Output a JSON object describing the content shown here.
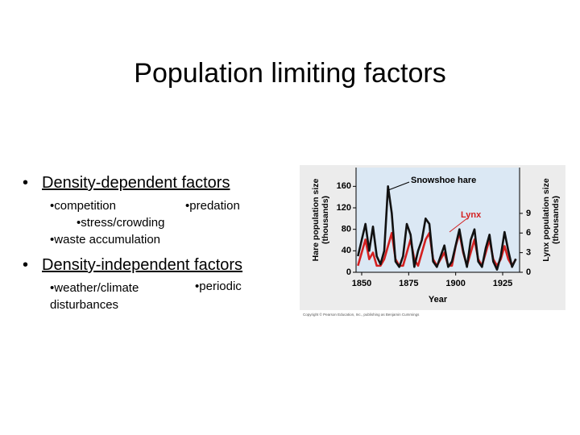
{
  "title": "Population limiting factors",
  "bullets": [
    {
      "heading": "Density-dependent factors",
      "items": [
        "competition",
        "predation",
        "stress/crowding",
        "waste accumulation"
      ]
    },
    {
      "heading": "Density-independent factors",
      "items": [
        "weather/climate disturbances",
        "periodic"
      ]
    }
  ],
  "chart_data": {
    "type": "line",
    "xlabel": "Year",
    "ylabel": [
      "Hare population size",
      "(thousands)"
    ],
    "y2label": [
      "Lynx population size",
      "(thousands)"
    ],
    "annotations": [
      "Snowshoe hare",
      "Lynx"
    ],
    "credit": "Copyright © Pearson Education, Inc., publishing as Benjamin Cummings",
    "x": [
      1848,
      1850,
      1852,
      1854,
      1856,
      1858,
      1860,
      1862,
      1864,
      1866,
      1868,
      1870,
      1872,
      1874,
      1876,
      1878,
      1880,
      1882,
      1884,
      1886,
      1888,
      1890,
      1892,
      1894,
      1896,
      1898,
      1900,
      1902,
      1904,
      1906,
      1908,
      1910,
      1912,
      1914,
      1916,
      1918,
      1920,
      1922,
      1924,
      1926,
      1928,
      1930,
      1932
    ],
    "series": [
      {
        "name": "Snowshoe hare",
        "color": "#111111",
        "values": [
          30,
          60,
          90,
          40,
          85,
          30,
          15,
          40,
          160,
          110,
          20,
          10,
          30,
          90,
          70,
          10,
          40,
          60,
          100,
          90,
          20,
          10,
          30,
          50,
          10,
          20,
          50,
          80,
          40,
          10,
          60,
          80,
          20,
          10,
          45,
          70,
          20,
          5,
          30,
          75,
          40,
          10,
          25
        ]
      },
      {
        "name": "Lynx",
        "color": "#d42020",
        "axis": "y2",
        "values": [
          1,
          3,
          5,
          2,
          3,
          1,
          1,
          2,
          4,
          6,
          2,
          1,
          1,
          3,
          5,
          2,
          1,
          3,
          5,
          6,
          2,
          1,
          2,
          3,
          1,
          1,
          4,
          6,
          3,
          1,
          3,
          5,
          2,
          1,
          3,
          5,
          2,
          1,
          2,
          4,
          2,
          1,
          2
        ]
      }
    ],
    "xlim": [
      1847,
      1934
    ],
    "xticks": [
      1850,
      1875,
      1900,
      1925
    ],
    "ylim": [
      0,
      195
    ],
    "yticks": [
      0,
      40,
      80,
      120,
      160
    ],
    "y2lim": [
      0,
      16
    ],
    "y2ticks": [
      0,
      3,
      6,
      9
    ]
  }
}
